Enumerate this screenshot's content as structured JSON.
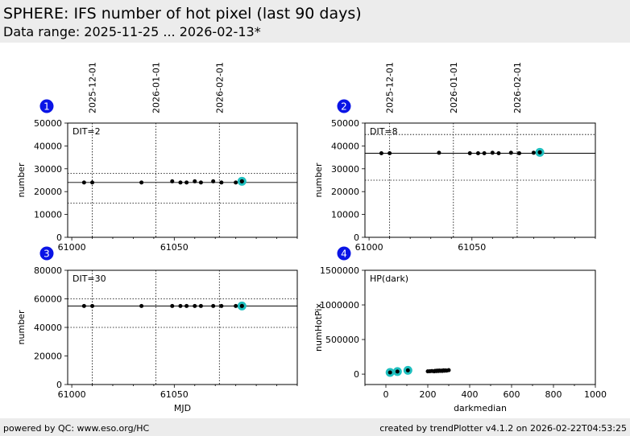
{
  "header": {
    "title": "SPHERE: IFS number of hot pixel (last 90 days)",
    "subtitle": "Data range: 2025-11-25 ... 2026-02-13*"
  },
  "footer": {
    "left": "powered by QC: www.eso.org/HC",
    "right": "created by trendPlotter v4.1.2 on 2026-02-22T04:53:25"
  },
  "colors": {
    "marker": "#000000",
    "highlight": "#1fbfbf",
    "badge": "#0a14e6"
  },
  "chart_data": [
    {
      "id": 1,
      "type": "scatter",
      "label": "DIT=2",
      "ylabel": "number",
      "xlabel": "",
      "xlim": [
        60998,
        61110
      ],
      "ylim": [
        0,
        50000
      ],
      "xticks": [
        61000,
        61050
      ],
      "yticks": [
        0,
        10000,
        20000,
        30000,
        40000,
        50000
      ],
      "date_ticks": [
        {
          "mjd": 61010,
          "label": "2025-12-01"
        },
        {
          "mjd": 61041,
          "label": "2026-01-01"
        },
        {
          "mjd": 61072,
          "label": "2026-02-01"
        }
      ],
      "ref_line": 24000,
      "limits": [
        15000,
        28000
      ],
      "x": [
        61006,
        61010,
        61034,
        61049,
        61053,
        61056,
        61060,
        61063,
        61069,
        61073,
        61080,
        61083
      ],
      "y": [
        24000,
        24000,
        24000,
        24500,
        24000,
        24000,
        24500,
        24000,
        24500,
        24000,
        24000,
        24500
      ],
      "highlight": [
        {
          "x": 61083,
          "y": 24500
        }
      ]
    },
    {
      "id": 2,
      "type": "scatter",
      "label": "DIT=8",
      "ylabel": "number",
      "xlabel": "",
      "xlim": [
        60998,
        61110
      ],
      "ylim": [
        0,
        50000
      ],
      "xticks": [
        61000,
        61050
      ],
      "yticks": [
        0,
        10000,
        20000,
        30000,
        40000,
        50000
      ],
      "date_ticks": [
        {
          "mjd": 61010,
          "label": "2025-12-01"
        },
        {
          "mjd": 61041,
          "label": "2026-01-01"
        },
        {
          "mjd": 61072,
          "label": "2026-02-01"
        }
      ],
      "ref_line": 36800,
      "limits": [
        25000,
        45000
      ],
      "x": [
        61006,
        61010,
        61034,
        61049,
        61053,
        61056,
        61060,
        61063,
        61069,
        61073,
        61080,
        61083
      ],
      "y": [
        36800,
        36800,
        37000,
        36800,
        36800,
        36800,
        37000,
        36800,
        37000,
        36800,
        37000,
        37200
      ],
      "highlight": [
        {
          "x": 61083,
          "y": 37200
        }
      ]
    },
    {
      "id": 3,
      "type": "scatter",
      "label": "DIT=30",
      "ylabel": "number",
      "xlabel": "MJD",
      "xlim": [
        60998,
        61110
      ],
      "ylim": [
        0,
        80000
      ],
      "xticks": [
        61000,
        61050
      ],
      "yticks": [
        0,
        20000,
        40000,
        60000,
        80000
      ],
      "date_ticks": [
        {
          "mjd": 61010,
          "label": ""
        },
        {
          "mjd": 61041,
          "label": ""
        },
        {
          "mjd": 61072,
          "label": ""
        }
      ],
      "ref_line": 55000,
      "limits": [
        40000,
        60000
      ],
      "x": [
        61006,
        61010,
        61034,
        61049,
        61053,
        61056,
        61060,
        61063,
        61069,
        61073,
        61080,
        61083
      ],
      "y": [
        55000,
        55000,
        55000,
        55000,
        55000,
        55000,
        55000,
        55000,
        55000,
        55000,
        55000,
        55000
      ],
      "highlight": [
        {
          "x": 61083,
          "y": 55000
        }
      ]
    },
    {
      "id": 4,
      "type": "scatter",
      "label": "HP(dark)",
      "ylabel": "numHotPix",
      "xlabel": "darkmedian",
      "xlim": [
        -100,
        1000
      ],
      "ylim": [
        -150000,
        1500000
      ],
      "xticks": [
        0,
        200,
        400,
        600,
        800,
        1000
      ],
      "yticks": [
        0,
        500000,
        1000000,
        1500000
      ],
      "x": [
        200,
        210,
        220,
        230,
        235,
        240,
        245,
        250,
        255,
        260,
        265,
        270,
        275,
        280,
        285,
        290,
        300
      ],
      "y": [
        40000,
        42000,
        45000,
        40000,
        48000,
        43000,
        50000,
        45000,
        52000,
        47000,
        50000,
        46000,
        55000,
        49000,
        53000,
        50000,
        57000
      ],
      "highlight": [
        {
          "x": 20,
          "y": 24500
        },
        {
          "x": 55,
          "y": 37200
        },
        {
          "x": 105,
          "y": 55000
        }
      ]
    }
  ]
}
